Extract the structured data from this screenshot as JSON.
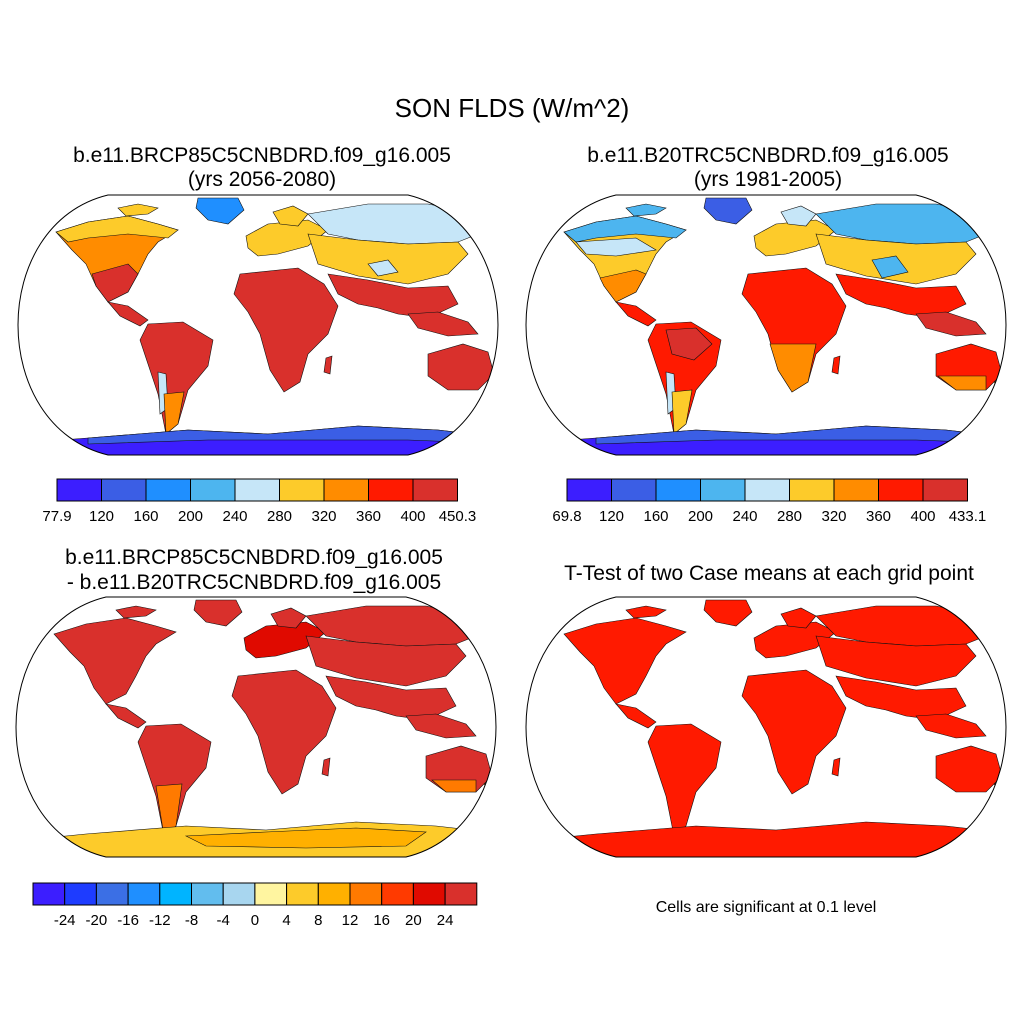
{
  "figure": {
    "title": "SON FLDS (W/m^2)",
    "panels": [
      {
        "title_line1": "b.e11.BRCP85C5CNBDRD.f09_g16.005",
        "title_line2": "(yrs 2056-2080)",
        "colorbar": {
          "colors": [
            "#3c1eff",
            "#3b5ee5",
            "#1f8fff",
            "#4db5ef",
            "#c6e6f8",
            "#fdcb2a",
            "#ff8c00",
            "#ff1a00",
            "#d9302c"
          ],
          "labels": [
            "77.9",
            "120",
            "160",
            "200",
            "240",
            "280",
            "320",
            "360",
            "400",
            "450.3"
          ]
        }
      },
      {
        "title_line1": "b.e11.B20TRC5CNBDRD.f09_g16.005",
        "title_line2": "(yrs 1981-2005)",
        "colorbar": {
          "colors": [
            "#3c1eff",
            "#3b5ee5",
            "#1f8fff",
            "#4db5ef",
            "#c6e6f8",
            "#fdcb2a",
            "#ff8c00",
            "#ff1a00",
            "#d9302c"
          ],
          "labels": [
            "69.8",
            "120",
            "160",
            "200",
            "240",
            "280",
            "320",
            "360",
            "400",
            "433.1"
          ]
        }
      },
      {
        "title_line1": "b.e11.BRCP85C5CNBDRD.f09_g16.005",
        "title_line2": "- b.e11.B20TRC5CNBDRD.f09_g16.005",
        "colorbar": {
          "colors": [
            "#3c1eff",
            "#1e3cff",
            "#3b6fe5",
            "#1f8fff",
            "#00b4ff",
            "#62bdee",
            "#a8d6ef",
            "#fff5a0",
            "#fdcb2a",
            "#ffb000",
            "#ff7a00",
            "#ff3a00",
            "#e00a00",
            "#d9302c"
          ],
          "labels": [
            "-24",
            "-20",
            "-16",
            "-12",
            "-8",
            "-4",
            "0",
            "4",
            "8",
            "12",
            "16",
            "20",
            "24"
          ]
        }
      },
      {
        "title_line1": "T-Test of two Case means at each grid point",
        "note": "Cells are significant at 0.1 level"
      }
    ]
  }
}
